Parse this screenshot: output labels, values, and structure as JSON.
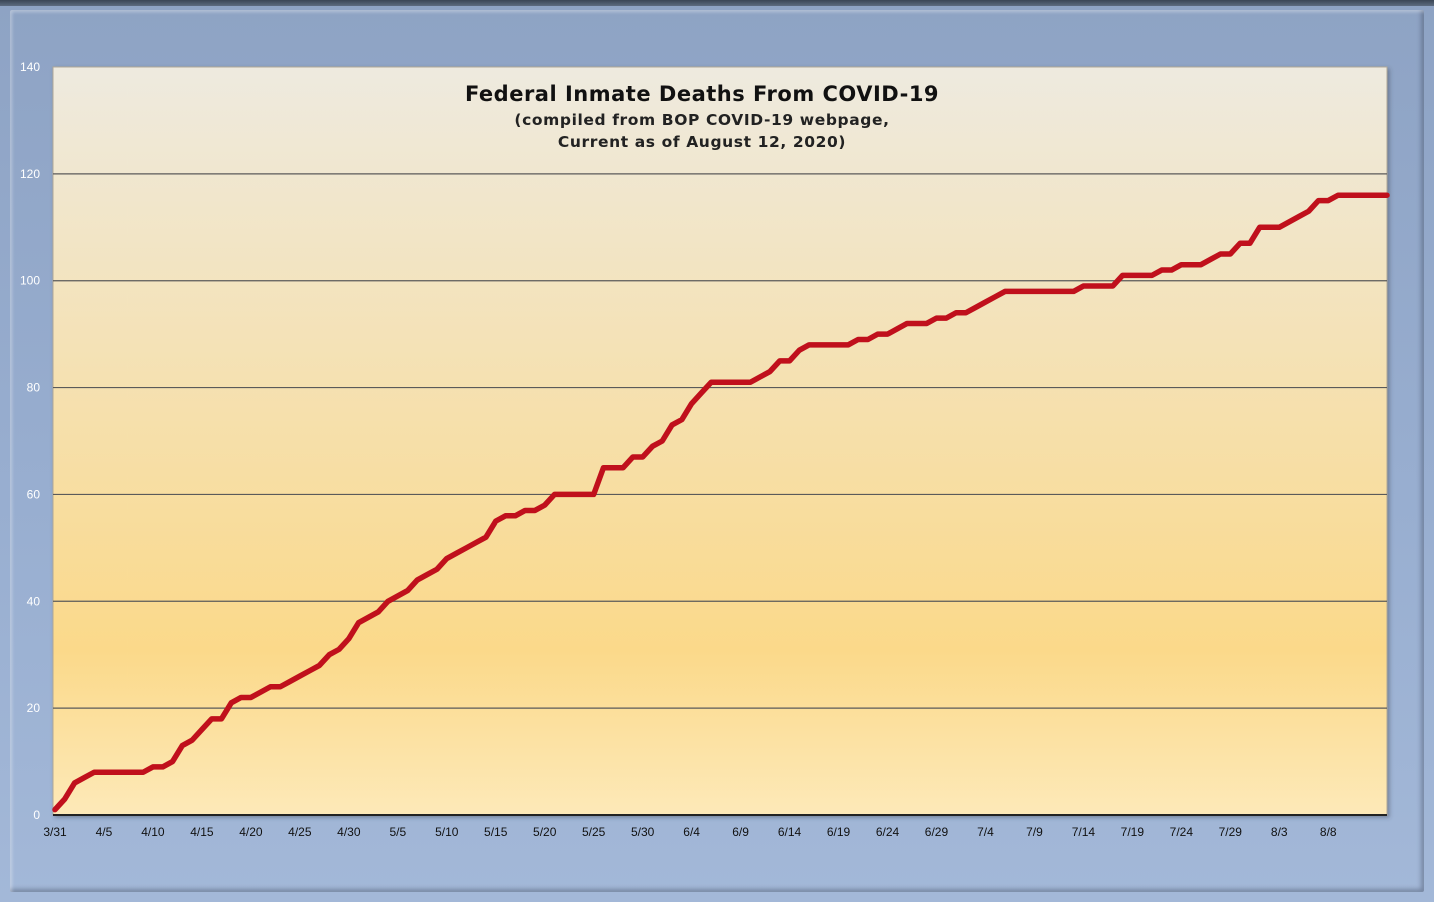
{
  "colors": {
    "line": "#c0101c",
    "grid": "#5a5a5a",
    "plot_top": "#eeeadf",
    "plot_mid": "#fbd98a",
    "plot_bottom": "#fde9b8"
  },
  "chart_data": {
    "type": "line",
    "title": "Federal Inmate Deaths From COVID-19",
    "subtitle_line1": "(compiled from BOP COVID-19 webpage,",
    "subtitle_line2": "Current as of August 12, 2020)",
    "xlabel": "",
    "ylabel": "",
    "ylim": [
      0,
      140
    ],
    "yticks": [
      0,
      20,
      40,
      60,
      80,
      100,
      120,
      140
    ],
    "x_tick_labels": [
      "3/31",
      "4/5",
      "4/10",
      "4/15",
      "4/20",
      "4/25",
      "4/30",
      "5/5",
      "5/10",
      "5/15",
      "5/20",
      "5/25",
      "5/30",
      "6/4",
      "6/9",
      "6/14",
      "6/19",
      "6/24",
      "6/29",
      "7/4",
      "7/9",
      "7/14",
      "7/19",
      "7/24",
      "7/29",
      "8/3",
      "8/8"
    ],
    "x_tick_every_days": 5,
    "grid": true,
    "legend": "none",
    "series": [
      {
        "values": [
          1,
          3,
          6,
          7,
          8,
          8,
          8,
          8,
          8,
          8,
          9,
          9,
          10,
          13,
          14,
          16,
          18,
          18,
          21,
          22,
          22,
          23,
          24,
          24,
          25,
          26,
          27,
          28,
          30,
          31,
          33,
          36,
          37,
          38,
          40,
          41,
          42,
          44,
          45,
          46,
          48,
          49,
          50,
          51,
          52,
          55,
          56,
          56,
          57,
          57,
          58,
          60,
          60,
          60,
          60,
          60,
          65,
          65,
          65,
          67,
          67,
          69,
          70,
          73,
          74,
          77,
          79,
          81,
          81,
          81,
          81,
          81,
          82,
          83,
          85,
          85,
          87,
          88,
          88,
          88,
          88,
          88,
          89,
          89,
          90,
          90,
          91,
          92,
          92,
          92,
          93,
          93,
          94,
          94,
          95,
          96,
          97,
          98,
          98,
          98,
          98,
          98,
          98,
          98,
          98,
          99,
          99,
          99,
          99,
          101,
          101,
          101,
          101,
          102,
          102,
          103,
          103,
          103,
          104,
          105,
          105,
          107,
          107,
          110,
          110,
          110,
          111,
          112,
          113,
          115,
          115,
          116,
          116,
          116,
          116,
          116,
          116
        ]
      }
    ]
  }
}
